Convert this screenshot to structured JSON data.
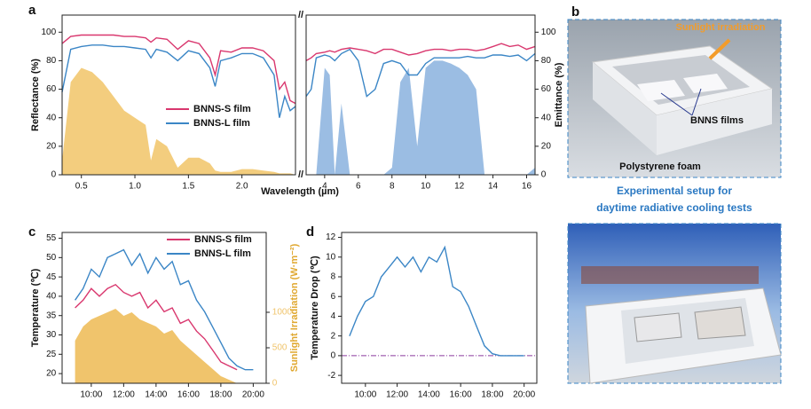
{
  "chart_data": [
    {
      "type": "line",
      "label": "a",
      "xlabel": "Wavelength (µm)",
      "ylabel": "Reflectance (%)",
      "y2label": "Emittance (%)",
      "break_mark": "//",
      "ylim": [
        0,
        112
      ],
      "yticks": [
        0,
        20,
        40,
        60,
        80,
        100
      ],
      "y2lim": [
        0,
        112
      ],
      "y2ticks": [
        0,
        20,
        40,
        60,
        80,
        100
      ],
      "legend": "center-left",
      "segments": [
        {
          "xlim": [
            0.32,
            2.5
          ],
          "xticks": [
            0.5,
            {
              "value": 1,
              "label": "1.0"
            },
            1.5,
            {
              "value": 2,
              "label": "2.0"
            }
          ],
          "x": [
            0.32,
            0.4,
            0.5,
            0.6,
            0.7,
            0.8,
            0.9,
            1.0,
            1.1,
            1.15,
            1.2,
            1.3,
            1.4,
            1.5,
            1.6,
            1.7,
            1.75,
            1.8,
            1.9,
            2.0,
            2.1,
            2.2,
            2.3,
            2.35,
            2.4,
            2.45,
            2.5
          ],
          "series": [
            {
              "name": "BNNS-S film",
              "color": "#d9376e",
              "values": [
                92,
                97,
                98,
                98,
                98,
                98,
                97,
                97,
                96,
                93,
                96,
                95,
                88,
                94,
                92,
                82,
                70,
                87,
                86,
                89,
                89,
                87,
                80,
                60,
                65,
                52,
                50
              ]
            },
            {
              "name": "BNNS-L film",
              "color": "#3b86c6",
              "values": [
                58,
                88,
                90,
                91,
                91,
                90,
                90,
                89,
                88,
                82,
                88,
                86,
                80,
                87,
                85,
                75,
                62,
                80,
                82,
                85,
                85,
                82,
                70,
                40,
                55,
                45,
                48
              ]
            }
          ],
          "area": {
            "color": "#f3cd7e",
            "values": [
              10,
              65,
              75,
              72,
              65,
              55,
              45,
              40,
              35,
              10,
              25,
              20,
              5,
              12,
              12,
              8,
              3,
              2,
              2,
              4,
              4,
              3,
              2,
              1,
              1,
              1,
              0
            ]
          }
        },
        {
          "xlim": [
            2.9,
            16.5
          ],
          "xticks": [
            4,
            6,
            8,
            10,
            12,
            14,
            16
          ],
          "x": [
            2.9,
            3.2,
            3.5,
            4,
            4.3,
            4.6,
            5,
            5.5,
            6,
            6.5,
            7,
            7.5,
            8,
            8.5,
            9,
            9.5,
            10,
            10.5,
            11,
            11.5,
            12,
            12.5,
            13,
            13.5,
            14,
            14.5,
            15,
            15.5,
            16,
            16.5
          ],
          "series": [
            {
              "color": "#d9376e",
              "values": [
                80,
                82,
                85,
                86,
                87,
                86,
                88,
                89,
                88,
                87,
                85,
                88,
                88,
                86,
                84,
                85,
                87,
                88,
                88,
                87,
                88,
                88,
                87,
                88,
                90,
                92,
                90,
                91,
                88,
                90
              ]
            },
            {
              "color": "#3b86c6",
              "values": [
                55,
                60,
                82,
                84,
                83,
                80,
                85,
                88,
                80,
                55,
                60,
                78,
                80,
                78,
                70,
                70,
                78,
                82,
                82,
                82,
                82,
                83,
                82,
                82,
                84,
                84,
                83,
                84,
                80,
                85
              ]
            }
          ],
          "area": {
            "color": "#9bbde3",
            "values": [
              0,
              0,
              0,
              75,
              70,
              0,
              50,
              0,
              0,
              0,
              0,
              0,
              5,
              65,
              75,
              20,
              75,
              80,
              80,
              78,
              75,
              70,
              60,
              0,
              0,
              0,
              0,
              0,
              0,
              5
            ]
          }
        }
      ]
    },
    {
      "type": "line",
      "label": "c",
      "ylabel": "Temperature (℃)",
      "y2label": "Sunlight Irradiation (W·m⁻²)",
      "legend": "upper-right",
      "x": [
        9,
        9.5,
        10,
        10.5,
        11,
        11.5,
        12,
        12.5,
        13,
        13.5,
        14,
        14.5,
        15,
        15.5,
        16,
        16.5,
        17,
        17.5,
        18,
        18.5,
        19,
        19.5,
        20
      ],
      "xlim": [
        8.2,
        20.8
      ],
      "xticks": [
        {
          "value": 10,
          "label": "10:00"
        },
        {
          "value": 12,
          "label": "12:00"
        },
        {
          "value": 14,
          "label": "14:00"
        },
        {
          "value": 16,
          "label": "16:00"
        },
        {
          "value": 18,
          "label": "18:00"
        },
        {
          "value": 20,
          "label": "20:00"
        }
      ],
      "ylim": [
        17.5,
        56.5
      ],
      "yticks": [
        20,
        25,
        30,
        35,
        40,
        45,
        50,
        55
      ],
      "y2lim": [
        0,
        2125
      ],
      "y2ticks": [
        0,
        500,
        1000
      ],
      "series": [
        {
          "name": "BNNS-S film",
          "color": "#d9376e",
          "values": [
            37,
            39,
            42,
            40,
            42,
            43,
            41,
            40,
            41,
            37,
            39,
            36,
            37,
            33,
            34,
            31,
            29,
            26,
            23,
            22,
            21,
            null,
            null
          ]
        },
        {
          "name": "BNNS-L film",
          "color": "#3b86c6",
          "values": [
            39,
            42,
            47,
            45,
            50,
            51,
            52,
            48,
            51,
            46,
            50,
            47,
            49,
            43,
            44,
            39,
            36,
            32,
            28,
            24,
            22,
            21,
            21
          ]
        },
        {
          "color": "#f0c46c",
          "axis": "y2",
          "values": [
            600,
            800,
            900,
            950,
            1000,
            1050,
            950,
            1000,
            900,
            850,
            800,
            700,
            750,
            600,
            500,
            400,
            300,
            200,
            100,
            50,
            0,
            0,
            0
          ]
        }
      ]
    },
    {
      "type": "line",
      "label": "d",
      "ylabel": "Temperature Drop (℃)",
      "x": [
        9,
        9.5,
        10,
        10.5,
        11,
        11.5,
        12,
        12.5,
        13,
        13.5,
        14,
        14.5,
        15,
        15.5,
        16,
        16.5,
        17,
        17.5,
        18,
        18.5,
        19,
        19.5,
        20
      ],
      "xlim": [
        8.5,
        20.8
      ],
      "xticks": [
        {
          "value": 10,
          "label": "10:00"
        },
        {
          "value": 12,
          "label": "12:00"
        },
        {
          "value": 14,
          "label": "14:00"
        },
        {
          "value": 16,
          "label": "16:00"
        },
        {
          "value": 18,
          "label": "18:00"
        },
        {
          "value": 20,
          "label": "20:00"
        }
      ],
      "ylim": [
        -2.8,
        12.5
      ],
      "yticks": [
        -2,
        0,
        2,
        4,
        6,
        8,
        10,
        12
      ],
      "series": [
        {
          "color": "#3b86c6",
          "values": [
            2,
            4,
            5.5,
            6,
            8,
            9,
            10,
            9,
            10,
            8.5,
            10,
            9.5,
            11,
            7,
            6.5,
            5,
            3,
            1,
            0.2,
            0,
            0,
            0,
            0
          ]
        }
      ],
      "reference_line": {
        "value": 0,
        "color": "#8a3a9e"
      }
    }
  ],
  "photo_panel": {
    "label": "b",
    "top_photo": {
      "arrow_label": "Sunlight irradiation",
      "films_label": "BNNS films",
      "foam_label": "Polystyrene foam"
    },
    "caption": [
      "Experimental setup for",
      "daytime radiative cooling tests"
    ]
  }
}
